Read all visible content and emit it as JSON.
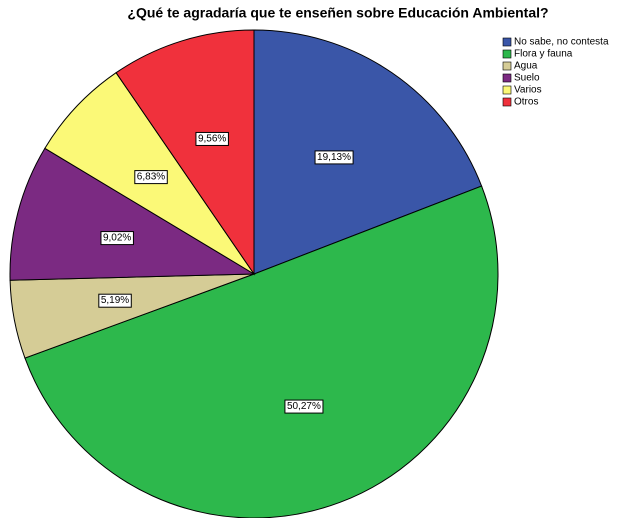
{
  "chart_data": {
    "type": "pie",
    "title": "¿Qué te agradaría que te enseñen sobre Educación Ambiental?",
    "categories": [
      "No sabe, no contesta",
      "Flora y fauna",
      "Agua",
      "Suelo",
      "Varios",
      "Otros"
    ],
    "values": [
      19.13,
      50.27,
      5.19,
      9.02,
      6.83,
      9.56
    ],
    "value_labels": [
      "19,13%",
      "50,27%",
      "5,19%",
      "9,02%",
      "6,83%",
      "9,56%"
    ],
    "colors": [
      "#3a56a8",
      "#2db84c",
      "#d5cc96",
      "#7b2a82",
      "#fbf977",
      "#f0313c"
    ],
    "legend": "top-right"
  }
}
